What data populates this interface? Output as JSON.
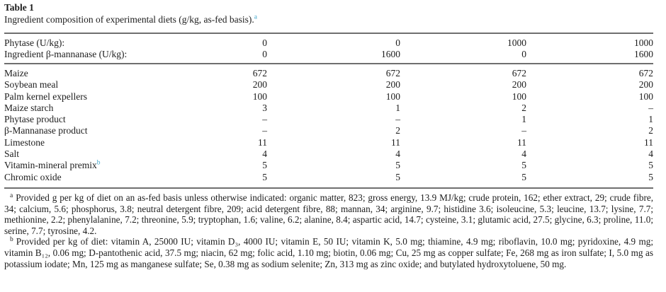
{
  "page": {
    "title": "Table 1",
    "caption": "Ingredient composition of experimental diets (g/kg, as-fed basis).",
    "caption_marker": "a"
  },
  "table": {
    "header_rows": [
      {
        "label": "Phytase (U/kg):",
        "values": [
          "0",
          "0",
          "1000",
          "1000"
        ]
      },
      {
        "label": "Ingredient β-mannanase (U/kg):",
        "values": [
          "0",
          "1600",
          "0",
          "1600"
        ]
      }
    ],
    "rows": [
      {
        "label": "Maize",
        "values": [
          "672",
          "672",
          "672",
          "672"
        ]
      },
      {
        "label": "Soybean meal",
        "values": [
          "200",
          "200",
          "200",
          "200"
        ]
      },
      {
        "label": "Palm kernel expellers",
        "values": [
          "100",
          "100",
          "100",
          "100"
        ]
      },
      {
        "label": "Maize starch",
        "values": [
          "3",
          "1",
          "2",
          "–"
        ]
      },
      {
        "label": "Phytase product",
        "values": [
          "–",
          "–",
          "1",
          "1"
        ]
      },
      {
        "label": "β-Mannanase product",
        "values": [
          "–",
          "2",
          "–",
          "2"
        ]
      },
      {
        "label": "Limestone",
        "values": [
          "11",
          "11",
          "11",
          "11"
        ]
      },
      {
        "label": "Salt",
        "values": [
          "4",
          "4",
          "4",
          "4"
        ]
      },
      {
        "label": "Vitamin-mineral premix",
        "marker": "b",
        "values": [
          "5",
          "5",
          "5",
          "5"
        ]
      },
      {
        "label": "Chromic oxide",
        "values": [
          "5",
          "5",
          "5",
          "5"
        ]
      }
    ]
  },
  "footnotes": [
    {
      "marker": "a",
      "text": "Provided g per kg of diet on an as-fed basis unless otherwise indicated: organic matter, 823; gross energy, 13.9 MJ/kg; crude protein, 162; ether extract, 29; crude fibre, 34; calcium, 5.6; phosphorus, 3.8; neutral detergent fibre, 209; acid detergent fibre, 88; mannan, 34; arginine, 9.7; histidine 3.6; isoleucine, 5.3; leucine, 13.7; lysine, 7.7; methionine, 2.2; phenylalanine, 7.2; threonine, 5.9; tryptophan, 1.6; valine, 6.2; alanine, 8.4; aspartic acid, 14.7; cysteine, 3.1; glutamic acid, 27.5; glycine, 6.3; proline, 11.0; serine, 7.7; tyrosine, 4.2."
    },
    {
      "marker": "b",
      "text": "Provided per kg of diet: vitamin A, 25000 IU; vitamin D₃, 4000 IU; vitamin E, 50 IU; vitamin K, 5.0 mg; thiamine, 4.9 mg; riboflavin, 10.0 mg; pyridoxine, 4.9 mg; vitamin B₁₂, 0.06 mg; D-pantothenic acid, 37.5 mg; niacin, 62 mg; folic acid, 1.10 mg; biotin, 0.06 mg; Cu, 25 mg as copper sulfate; Fe, 268 mg as iron sulfate; I, 5.0 mg as potassium iodate; Mn, 125 mg as manganese sulfate; Se, 0.38 mg as sodium selenite; Zn, 313 mg as zinc oxide; and butylated hydroxytoluene, 50 mg."
    }
  ],
  "colors": {
    "accent": "#3aa2c9",
    "rule": "#6f6f6f",
    "text": "#1c1c1c"
  }
}
